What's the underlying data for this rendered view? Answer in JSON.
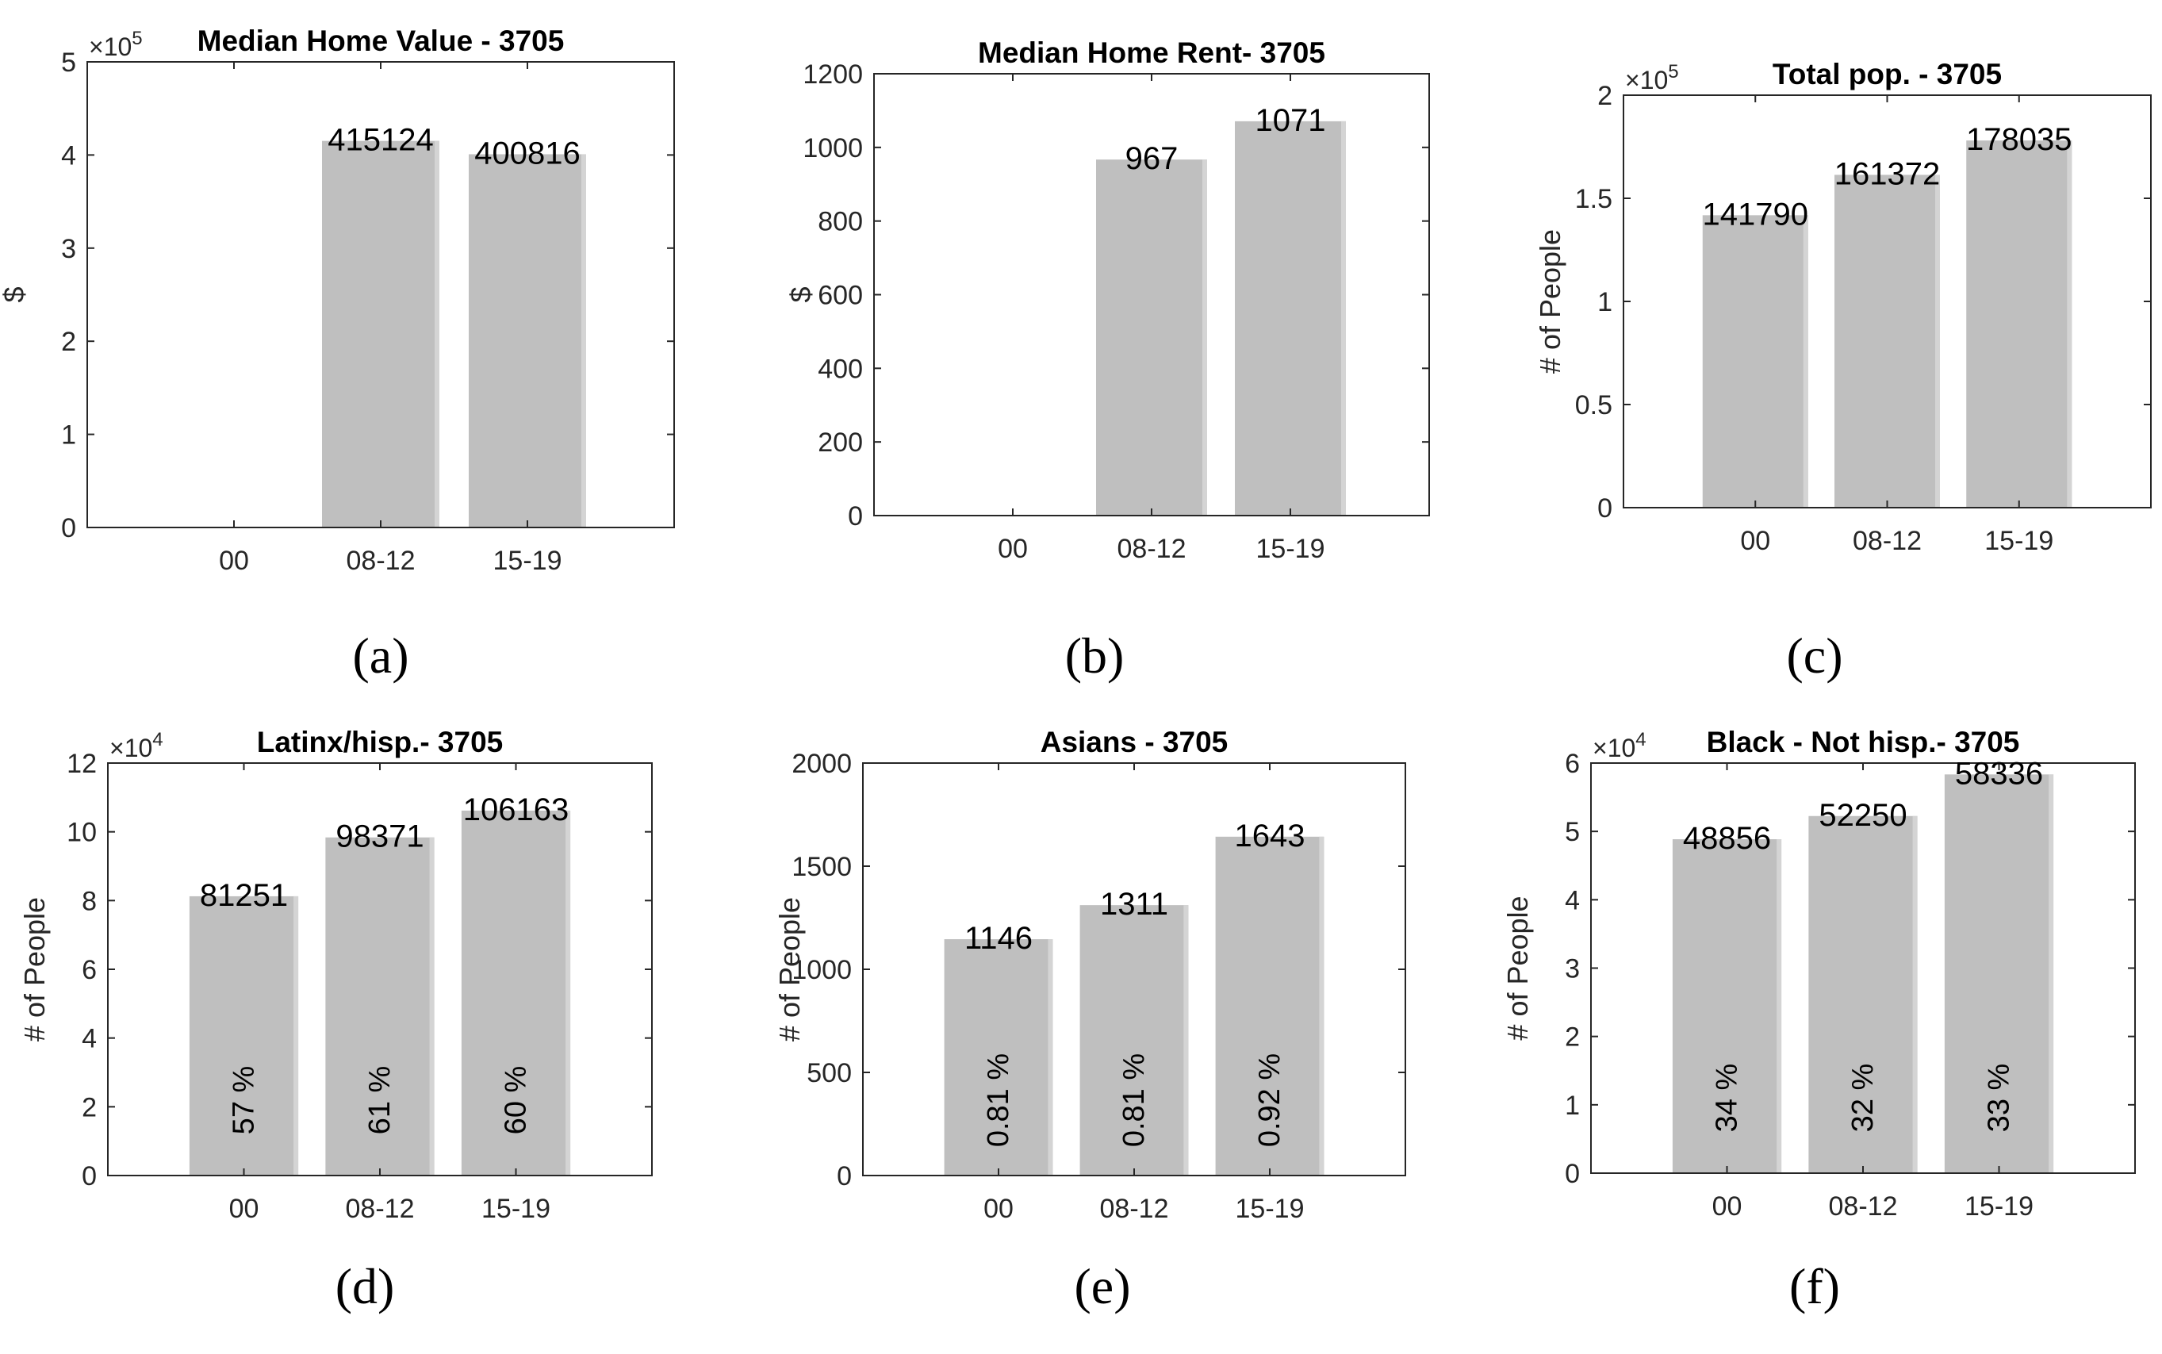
{
  "bar_color": "#bfbfbf",
  "bar_edge_color": "#d4d4d4",
  "chart_data": [
    {
      "panel": "(a)",
      "type": "bar",
      "title": "Median Home Value - 3705",
      "ylabel": "$",
      "categories": [
        "00",
        "08-12",
        "15-19"
      ],
      "values": [
        0,
        415124,
        400816
      ],
      "value_labels": [
        "",
        "415124",
        "400816"
      ],
      "ylim": [
        0,
        500000
      ],
      "yticks": [
        0,
        100000,
        200000,
        300000,
        400000,
        500000
      ],
      "ytick_labels": [
        "0",
        "1",
        "2",
        "3",
        "4",
        "5"
      ],
      "multiplier": {
        "base": "×10",
        "exp": "5"
      }
    },
    {
      "panel": "(b)",
      "type": "bar",
      "title": "Median Home Rent- 3705",
      "ylabel": "$",
      "categories": [
        "00",
        "08-12",
        "15-19"
      ],
      "values": [
        0,
        967,
        1071
      ],
      "value_labels": [
        "",
        "967",
        "1071"
      ],
      "ylim": [
        0,
        1200
      ],
      "yticks": [
        0,
        200,
        400,
        600,
        800,
        1000,
        1200
      ],
      "ytick_labels": [
        "0",
        "200",
        "400",
        "600",
        "800",
        "1000",
        "1200"
      ]
    },
    {
      "panel": "(c)",
      "type": "bar",
      "title": "Total pop. - 3705",
      "ylabel": "# of People",
      "categories": [
        "00",
        "08-12",
        "15-19"
      ],
      "values": [
        141790,
        161372,
        178035
      ],
      "value_labels": [
        "141790",
        "161372",
        "178035"
      ],
      "ylim": [
        0,
        200000
      ],
      "yticks": [
        0,
        50000,
        100000,
        150000,
        200000
      ],
      "ytick_labels": [
        "0",
        "0.5",
        "1",
        "1.5",
        "2"
      ],
      "multiplier": {
        "base": "×10",
        "exp": "5"
      }
    },
    {
      "panel": "(d)",
      "type": "bar",
      "title": "Latinx/hisp.- 3705",
      "ylabel": "# of People",
      "categories": [
        "00",
        "08-12",
        "15-19"
      ],
      "values": [
        81251,
        98371,
        106163
      ],
      "value_labels": [
        "81251",
        "98371",
        "106163"
      ],
      "percent_labels": [
        "57 %",
        "61 %",
        "60 %"
      ],
      "ylim": [
        0,
        120000
      ],
      "yticks": [
        0,
        20000,
        40000,
        60000,
        80000,
        100000,
        120000
      ],
      "ytick_labels": [
        "0",
        "2",
        "4",
        "6",
        "8",
        "10",
        "12"
      ],
      "multiplier": {
        "base": "×10",
        "exp": "4"
      }
    },
    {
      "panel": "(e)",
      "type": "bar",
      "title": "Asians - 3705",
      "ylabel": "# of People",
      "categories": [
        "00",
        "08-12",
        "15-19"
      ],
      "values": [
        1146,
        1311,
        1643
      ],
      "value_labels": [
        "1146",
        "1311",
        "1643"
      ],
      "percent_labels": [
        "0.81 %",
        "0.81 %",
        "0.92 %"
      ],
      "ylim": [
        0,
        2000
      ],
      "yticks": [
        0,
        500,
        1000,
        1500,
        2000
      ],
      "ytick_labels": [
        "0",
        "500",
        "1000",
        "1500",
        "2000"
      ]
    },
    {
      "panel": "(f)",
      "type": "bar",
      "title": "Black - Not hisp.- 3705",
      "ylabel": "# of People",
      "categories": [
        "00",
        "08-12",
        "15-19"
      ],
      "values": [
        48856,
        52250,
        58336
      ],
      "value_labels": [
        "48856",
        "52250",
        "58336"
      ],
      "percent_labels": [
        "34 %",
        "32 %",
        "33 %"
      ],
      "ylim": [
        0,
        60000
      ],
      "yticks": [
        0,
        10000,
        20000,
        30000,
        40000,
        50000,
        60000
      ],
      "ytick_labels": [
        "0",
        "1",
        "2",
        "3",
        "4",
        "5",
        "6"
      ],
      "multiplier": {
        "base": "×10",
        "exp": "4"
      }
    }
  ]
}
